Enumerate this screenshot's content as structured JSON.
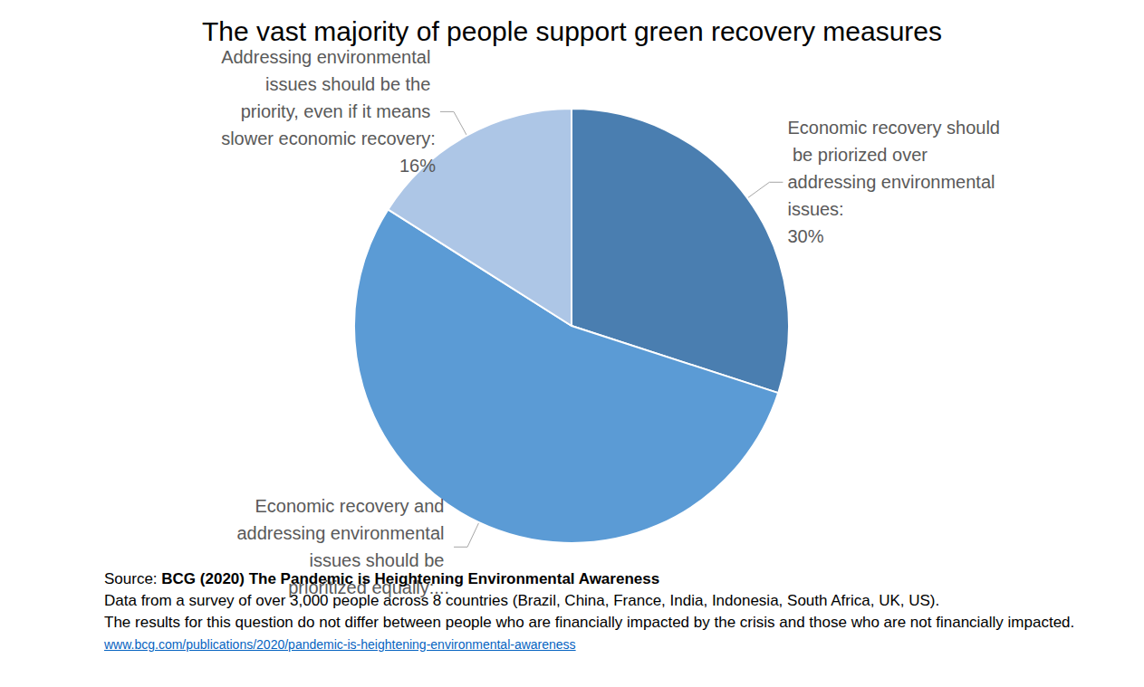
{
  "chart_data": {
    "type": "pie",
    "title": "The vast majority of people support green recovery measures",
    "categories": [
      "Economic recovery should be priorized over addressing environmental issues:",
      "Economic recovery and addressing environmental issues should be prioritized equally:...",
      "Addressing environmental issues should be the priority, even if it means slower economic recovery:"
    ],
    "values": [
      30,
      54,
      16
    ],
    "value_labels": [
      "30%",
      null,
      "16%"
    ],
    "colors": [
      "#4a7eb0",
      "#5b9bd5",
      "#adc6e6"
    ],
    "data_labels": true,
    "source": {
      "label": "Source:",
      "title": "BCG (2020) The Pandemic is Heightening Environmental Awareness",
      "notes": [
        "Data from a survey of over 3,000 people across 8 countries (Brazil, China, France, India, Indonesia, South Africa, UK, US).",
        "The results for this question do not differ between people who are financially impacted by the crisis and those who are not financially impacted."
      ],
      "url": "www.bcg.com/publications/2020/pandemic-is-heightening-environmental-awareness"
    }
  }
}
